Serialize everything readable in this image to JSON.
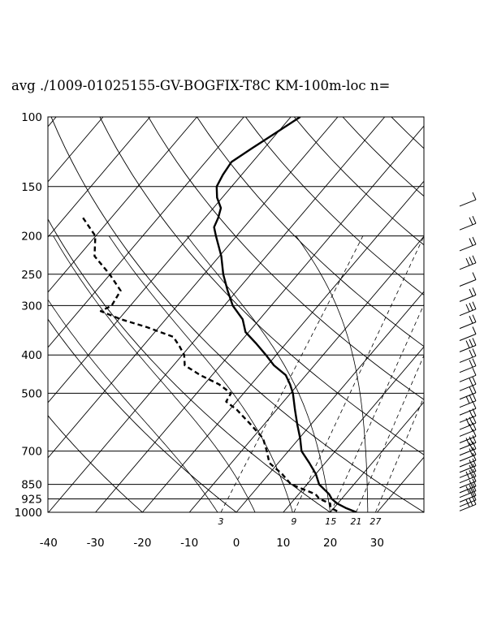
{
  "chart_data": {
    "type": "line",
    "title": "avg ./1009-01025155-GV-BOGFIX-T8C KM-100m-loc n=",
    "xlabel": "",
    "ylabel": "",
    "x_ticks": [
      -40,
      -30,
      -20,
      -10,
      0,
      10,
      20,
      30
    ],
    "pressure_levels": [
      100,
      150,
      200,
      250,
      300,
      400,
      500,
      700,
      850,
      925,
      1000
    ],
    "mixing_ratio_labels": [
      {
        "label": "3",
        "value": 3
      },
      {
        "label": "9",
        "value": 9
      },
      {
        "label": "15",
        "value": 15
      },
      {
        "label": "21",
        "value": 21
      },
      {
        "label": "27",
        "value": 27
      }
    ],
    "xlim": [
      -40,
      40
    ],
    "ylim": [
      1000,
      100
    ],
    "yscale": "log",
    "grid": true,
    "series": [
      {
        "style": "solid",
        "points": [
          [
            100,
            -58.0
          ],
          [
            110,
            -60.4
          ],
          [
            120,
            -62.6
          ],
          [
            130,
            -64.5
          ],
          [
            140,
            -64.0
          ],
          [
            150,
            -63.2
          ],
          [
            160,
            -61.1
          ],
          [
            170,
            -58.4
          ],
          [
            180,
            -57.2
          ],
          [
            190,
            -56.4
          ],
          [
            200,
            -54.4
          ],
          [
            225,
            -49.6
          ],
          [
            250,
            -45.9
          ],
          [
            275,
            -42.0
          ],
          [
            300,
            -38.2
          ],
          [
            325,
            -33.6
          ],
          [
            350,
            -30.7
          ],
          [
            375,
            -26.2
          ],
          [
            400,
            -22.2
          ],
          [
            425,
            -18.6
          ],
          [
            450,
            -14.3
          ],
          [
            475,
            -11.7
          ],
          [
            500,
            -9.5
          ],
          [
            550,
            -6.1
          ],
          [
            600,
            -2.9
          ],
          [
            650,
            0.2
          ],
          [
            700,
            2.8
          ],
          [
            750,
            6.6
          ],
          [
            800,
            10.0
          ],
          [
            850,
            12.6
          ],
          [
            900,
            16.5
          ],
          [
            925,
            17.9
          ],
          [
            950,
            19.9
          ],
          [
            975,
            22.5
          ],
          [
            1000,
            25.6
          ]
        ]
      },
      {
        "style": "dashed",
        "points": [
          [
            180,
            -86.0
          ],
          [
            200,
            -80.1
          ],
          [
            225,
            -76.6
          ],
          [
            250,
            -70.1
          ],
          [
            275,
            -64.8
          ],
          [
            300,
            -64.0
          ],
          [
            310,
            -65.3
          ],
          [
            325,
            -59.5
          ],
          [
            340,
            -52.7
          ],
          [
            360,
            -45.2
          ],
          [
            380,
            -42.2
          ],
          [
            400,
            -39.6
          ],
          [
            425,
            -37.6
          ],
          [
            450,
            -32.5
          ],
          [
            475,
            -26.8
          ],
          [
            500,
            -22.7
          ],
          [
            525,
            -22.2
          ],
          [
            550,
            -18.5
          ],
          [
            600,
            -12.8
          ],
          [
            650,
            -7.7
          ],
          [
            700,
            -4.6
          ],
          [
            750,
            -1.9
          ],
          [
            800,
            2.8
          ],
          [
            850,
            6.6
          ],
          [
            900,
            13.6
          ],
          [
            925,
            15.3
          ],
          [
            950,
            18.4
          ],
          [
            975,
            19.3
          ],
          [
            1000,
            22.0
          ]
        ]
      }
    ],
    "wind_barbs_shown": true
  }
}
